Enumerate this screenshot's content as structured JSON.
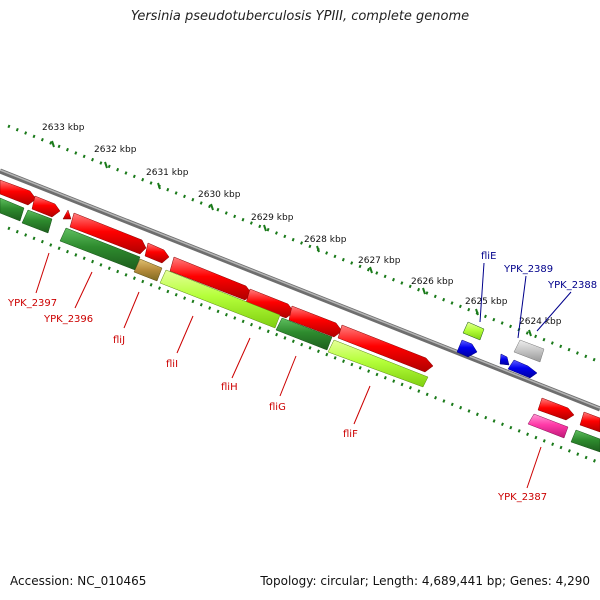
{
  "title": "Yersinia pseudotuberculosis YPIII, complete genome",
  "footer": {
    "accession": "Accession: NC_010465",
    "topology": "Topology: circular; Length: 4,689,441 bp; Genes: 4,290"
  },
  "ticks": [
    "2633 kbp",
    "2632 kbp",
    "2631 kbp",
    "2630 kbp",
    "2629 kbp",
    "2628 kbp",
    "2627 kbp",
    "2626 kbp",
    "2625 kbp",
    "2624 kbp"
  ],
  "gene_labels": [
    {
      "name": "YPK_2397",
      "color": "#cc0000"
    },
    {
      "name": "YPK_2396",
      "color": "#cc0000"
    },
    {
      "name": "fliJ",
      "color": "#cc0000"
    },
    {
      "name": "fliI",
      "color": "#cc0000"
    },
    {
      "name": "fliH",
      "color": "#cc0000"
    },
    {
      "name": "fliG",
      "color": "#cc0000"
    },
    {
      "name": "fliF",
      "color": "#cc0000"
    },
    {
      "name": "fliE",
      "color": "#00008b"
    },
    {
      "name": "YPK_2389",
      "color": "#00008b"
    },
    {
      "name": "YPK_2388",
      "color": "#00008b"
    },
    {
      "name": "YPK_2387",
      "color": "#cc0000"
    }
  ],
  "colors": {
    "backbone": "#8a8a8a",
    "tick": "#1a7a1a",
    "cds_red": "#ee0000",
    "cds_green": "#2e8b2e",
    "cds_lightgreen": "#b5ff3a",
    "cds_blue": "#0000ee",
    "cds_gray": "#c8c8c8",
    "cds_pink": "#ff3aa8",
    "label_red": "#cc0000",
    "label_blue": "#00008b"
  }
}
